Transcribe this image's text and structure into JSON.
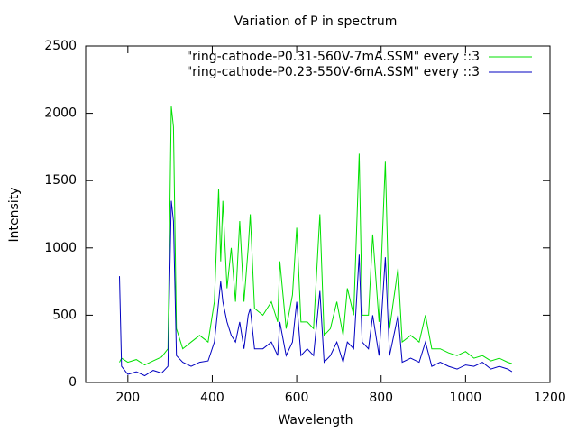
{
  "chart_data": {
    "type": "line",
    "title": "Variation of P in spectrum",
    "x_label": "Wavelength",
    "y_label": "Intensity",
    "x": [
      180,
      185,
      200,
      220,
      240,
      260,
      280,
      295,
      303,
      308,
      315,
      330,
      350,
      370,
      390,
      405,
      415,
      420,
      425,
      435,
      445,
      455,
      465,
      475,
      485,
      490,
      500,
      520,
      540,
      555,
      560,
      575,
      590,
      600,
      610,
      625,
      640,
      655,
      665,
      680,
      695,
      710,
      720,
      735,
      748,
      755,
      770,
      780,
      795,
      810,
      820,
      840,
      850,
      870,
      890,
      905,
      920,
      940,
      960,
      980,
      1000,
      1020,
      1040,
      1060,
      1080,
      1100,
      1110
    ],
    "series": [
      {
        "name": "\"ring-cathode-P0.31-560V-7mA.SSM\" every ::3",
        "color": "#00e000",
        "values": [
          150,
          180,
          150,
          170,
          130,
          160,
          190,
          250,
          2050,
          1900,
          400,
          250,
          300,
          350,
          300,
          600,
          1440,
          900,
          1350,
          700,
          1000,
          600,
          1200,
          600,
          1000,
          1250,
          550,
          500,
          600,
          450,
          900,
          400,
          650,
          1150,
          450,
          450,
          400,
          1250,
          350,
          400,
          600,
          350,
          700,
          500,
          1700,
          500,
          500,
          1100,
          450,
          1640,
          400,
          850,
          300,
          350,
          300,
          500,
          250,
          250,
          220,
          200,
          230,
          180,
          200,
          160,
          180,
          150,
          140
        ]
      },
      {
        "name": "\"ring-cathode-P0.23-550V-6mA.SSM\" every ::3",
        "color": "#0000c0",
        "values": [
          790,
          120,
          60,
          80,
          50,
          90,
          70,
          120,
          1350,
          1200,
          200,
          150,
          120,
          150,
          160,
          300,
          600,
          750,
          600,
          450,
          350,
          300,
          450,
          250,
          500,
          550,
          250,
          250,
          300,
          200,
          450,
          200,
          300,
          600,
          200,
          250,
          200,
          680,
          150,
          200,
          300,
          150,
          300,
          250,
          950,
          300,
          250,
          500,
          200,
          930,
          200,
          500,
          150,
          180,
          150,
          300,
          120,
          150,
          120,
          100,
          130,
          120,
          150,
          100,
          120,
          100,
          80
        ]
      }
    ],
    "xlim": [
      100,
      1200
    ],
    "xticks": [
      200,
      400,
      600,
      800,
      1000,
      1200
    ],
    "ylim": [
      0,
      2500
    ],
    "yticks": [
      0,
      500,
      1000,
      1500,
      2000,
      2500
    ],
    "legend": "top-right"
  }
}
